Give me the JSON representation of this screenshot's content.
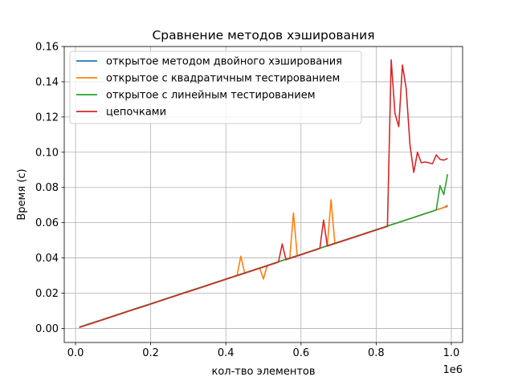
{
  "chart_data": {
    "type": "line",
    "title": "Сравнение методов хэширования",
    "xlabel": "кол-тво элементов",
    "ylabel": "Время (с)",
    "x_offset_label": "1e6",
    "xlim": [
      -30000,
      1030000
    ],
    "ylim": [
      -0.008,
      0.16
    ],
    "x_ticks": [
      0,
      200000,
      400000,
      600000,
      800000,
      1000000
    ],
    "x_tick_labels": [
      "0.0",
      "0.2",
      "0.4",
      "0.6",
      "0.8",
      "1.0"
    ],
    "y_ticks": [
      0.0,
      0.02,
      0.04,
      0.06,
      0.08,
      0.1,
      0.12,
      0.14,
      0.16
    ],
    "y_tick_labels": [
      "0.00",
      "0.02",
      "0.04",
      "0.06",
      "0.08",
      "0.10",
      "0.12",
      "0.14",
      "0.16"
    ],
    "grid": true,
    "legend_position": "top-left",
    "x": [
      10000,
      20000,
      30000,
      40000,
      50000,
      60000,
      70000,
      80000,
      90000,
      100000,
      110000,
      120000,
      130000,
      140000,
      150000,
      160000,
      170000,
      180000,
      190000,
      200000,
      210000,
      220000,
      230000,
      240000,
      250000,
      260000,
      270000,
      280000,
      290000,
      300000,
      310000,
      320000,
      330000,
      340000,
      350000,
      360000,
      370000,
      380000,
      390000,
      400000,
      410000,
      420000,
      430000,
      440000,
      450000,
      460000,
      470000,
      480000,
      490000,
      500000,
      510000,
      520000,
      530000,
      540000,
      550000,
      560000,
      570000,
      580000,
      590000,
      600000,
      610000,
      620000,
      630000,
      640000,
      650000,
      660000,
      670000,
      680000,
      690000,
      700000,
      710000,
      720000,
      730000,
      740000,
      750000,
      760000,
      770000,
      780000,
      790000,
      800000,
      810000,
      820000,
      830000,
      840000,
      850000,
      860000,
      870000,
      880000,
      890000,
      900000,
      910000,
      920000,
      930000,
      940000,
      950000,
      960000,
      970000,
      980000,
      990000
    ],
    "series": [
      {
        "name": "открытое методом двойного хэширования",
        "color": "#1f77b4",
        "values": [
          0.0007,
          0.0014,
          0.0021,
          0.0028,
          0.0035,
          0.0042,
          0.0049,
          0.0056,
          0.0063,
          0.007,
          0.0077,
          0.0084,
          0.0091,
          0.0098,
          0.0105,
          0.0112,
          0.0119,
          0.0126,
          0.0133,
          0.014,
          0.0147,
          0.0154,
          0.0161,
          0.0168,
          0.0175,
          0.0182,
          0.0189,
          0.0196,
          0.0203,
          0.021,
          0.0217,
          0.0224,
          0.0231,
          0.0238,
          0.0245,
          0.0252,
          0.0259,
          0.0266,
          0.0273,
          0.028,
          0.0287,
          0.0294,
          0.0301,
          0.0308,
          0.0315,
          0.0322,
          0.0329,
          0.0336,
          0.0343,
          0.035,
          0.0357,
          0.0364,
          0.0371,
          0.0378,
          0.0385,
          0.0392,
          0.0399,
          0.0406,
          0.0413,
          0.042,
          0.0427,
          0.0434,
          0.0441,
          0.0448,
          0.0455,
          0.0462,
          0.0469,
          0.0476,
          0.0483,
          0.049,
          0.0497,
          0.0504,
          0.0511,
          0.0518,
          0.0525,
          0.0532,
          0.0539,
          0.0546,
          0.0553,
          0.056,
          0.0567,
          0.0574,
          0.0581,
          0.0588,
          0.0595,
          0.0602,
          0.0609,
          0.0616,
          0.0623,
          0.063,
          0.0637,
          0.0644,
          0.0651,
          0.0658,
          0.0665,
          0.0672,
          0.0679,
          0.0686,
          0.0693
        ]
      },
      {
        "name": "открытое с квадратичным тестированием",
        "color": "#ff7f0e",
        "values": [
          0.0007,
          0.0014,
          0.0021,
          0.0028,
          0.0035,
          0.0042,
          0.0049,
          0.0056,
          0.0063,
          0.007,
          0.0077,
          0.0084,
          0.0091,
          0.0098,
          0.0105,
          0.0112,
          0.0119,
          0.0126,
          0.0133,
          0.014,
          0.0147,
          0.0154,
          0.0161,
          0.0168,
          0.0175,
          0.0182,
          0.0189,
          0.0196,
          0.0203,
          0.021,
          0.0217,
          0.0224,
          0.0231,
          0.0238,
          0.0245,
          0.0252,
          0.0259,
          0.0266,
          0.0273,
          0.028,
          0.0287,
          0.0294,
          0.0301,
          0.041,
          0.0315,
          0.0322,
          0.0329,
          0.0336,
          0.0343,
          0.028,
          0.0357,
          0.0364,
          0.0371,
          0.0378,
          0.0385,
          0.0392,
          0.0399,
          0.0655,
          0.0413,
          0.042,
          0.0427,
          0.0434,
          0.0441,
          0.0448,
          0.0455,
          0.0462,
          0.0469,
          0.073,
          0.0483,
          0.049,
          0.0497,
          0.0504,
          0.0511,
          0.0518,
          0.0525,
          0.0532,
          0.0539,
          0.0546,
          0.0553,
          0.056,
          0.0567,
          0.0574,
          0.0581,
          0.0588,
          0.0595,
          0.0602,
          0.0609,
          0.0616,
          0.0623,
          0.063,
          0.0637,
          0.0644,
          0.0651,
          0.0658,
          0.0665,
          0.0672,
          0.0679,
          0.0686,
          0.07
        ]
      },
      {
        "name": "открытое с линейным тестированием",
        "color": "#2ca02c",
        "values": [
          0.0007,
          0.0014,
          0.0021,
          0.0028,
          0.0035,
          0.0042,
          0.0049,
          0.0056,
          0.0063,
          0.007,
          0.0077,
          0.0084,
          0.0091,
          0.0098,
          0.0105,
          0.0112,
          0.0119,
          0.0126,
          0.0133,
          0.014,
          0.0147,
          0.0154,
          0.0161,
          0.0168,
          0.0175,
          0.0182,
          0.0189,
          0.0196,
          0.0203,
          0.021,
          0.0217,
          0.0224,
          0.0231,
          0.0238,
          0.0245,
          0.0252,
          0.0259,
          0.0266,
          0.0273,
          0.028,
          0.0287,
          0.0294,
          0.0301,
          0.0308,
          0.0315,
          0.0322,
          0.0329,
          0.0336,
          0.0343,
          0.035,
          0.0357,
          0.0364,
          0.0371,
          0.0378,
          0.0385,
          0.0392,
          0.0399,
          0.0406,
          0.0413,
          0.042,
          0.0427,
          0.0434,
          0.0441,
          0.0448,
          0.0455,
          0.0462,
          0.0469,
          0.0476,
          0.0483,
          0.049,
          0.0497,
          0.0504,
          0.0511,
          0.0518,
          0.0525,
          0.0532,
          0.0539,
          0.0546,
          0.0553,
          0.056,
          0.0567,
          0.0574,
          0.0581,
          0.0588,
          0.0595,
          0.0602,
          0.0609,
          0.0616,
          0.0623,
          0.063,
          0.0637,
          0.0644,
          0.0651,
          0.0658,
          0.0665,
          0.0672,
          0.081,
          0.076,
          0.0875
        ]
      },
      {
        "name": "цепочками",
        "color": "#d62728",
        "values": [
          0.0005,
          0.0012,
          0.0019,
          0.0026,
          0.0033,
          0.004,
          0.0047,
          0.0054,
          0.0061,
          0.0068,
          0.0075,
          0.0082,
          0.0089,
          0.0096,
          0.0103,
          0.011,
          0.0117,
          0.0124,
          0.0131,
          0.0138,
          0.0145,
          0.0152,
          0.0159,
          0.0166,
          0.0173,
          0.018,
          0.0187,
          0.0194,
          0.0201,
          0.0208,
          0.0215,
          0.0222,
          0.0229,
          0.0236,
          0.0243,
          0.025,
          0.0257,
          0.0264,
          0.0271,
          0.0278,
          0.0285,
          0.0292,
          0.0299,
          0.0306,
          0.0313,
          0.032,
          0.0327,
          0.0334,
          0.0341,
          0.0348,
          0.0355,
          0.0362,
          0.0369,
          0.0376,
          0.048,
          0.039,
          0.0397,
          0.0404,
          0.0411,
          0.0418,
          0.0425,
          0.0432,
          0.0439,
          0.0446,
          0.0453,
          0.0615,
          0.0467,
          0.0474,
          0.0481,
          0.0488,
          0.0495,
          0.0502,
          0.0509,
          0.0516,
          0.0523,
          0.053,
          0.0537,
          0.0544,
          0.0551,
          0.0558,
          0.0565,
          0.0572,
          0.0579,
          0.1525,
          0.122,
          0.1145,
          0.1495,
          0.136,
          0.104,
          0.0885,
          0.1,
          0.094,
          0.0945,
          0.094,
          0.0935,
          0.0985,
          0.096,
          0.0955,
          0.0965
        ]
      }
    ]
  }
}
